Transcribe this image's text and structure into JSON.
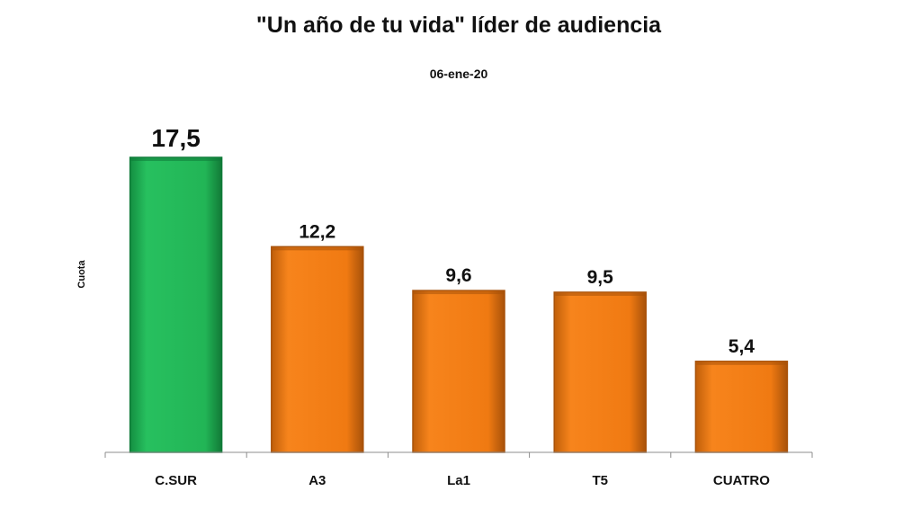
{
  "chart_data": {
    "type": "bar",
    "title": "\"Un año de tu vida\" líder de audiencia",
    "subtitle": "06-ene-20",
    "ylabel": "Cuota",
    "xlabel": "",
    "categories": [
      "C.SUR",
      "A3",
      "La1",
      "T5",
      "CUATRO"
    ],
    "values": [
      17.5,
      12.2,
      9.6,
      9.5,
      5.4
    ],
    "value_labels": [
      "17,5",
      "12,2",
      "9,6",
      "9,5",
      "5,4"
    ],
    "ylim": [
      0,
      17.5
    ],
    "grid": false,
    "legend": "none",
    "colors": {
      "highlight": "#1fb255",
      "highlight_edge": "#0f7a38",
      "default": "#ef7810",
      "default_edge": "#a8520a",
      "axis": "#8c8c8c"
    },
    "highlight_index": 0
  }
}
